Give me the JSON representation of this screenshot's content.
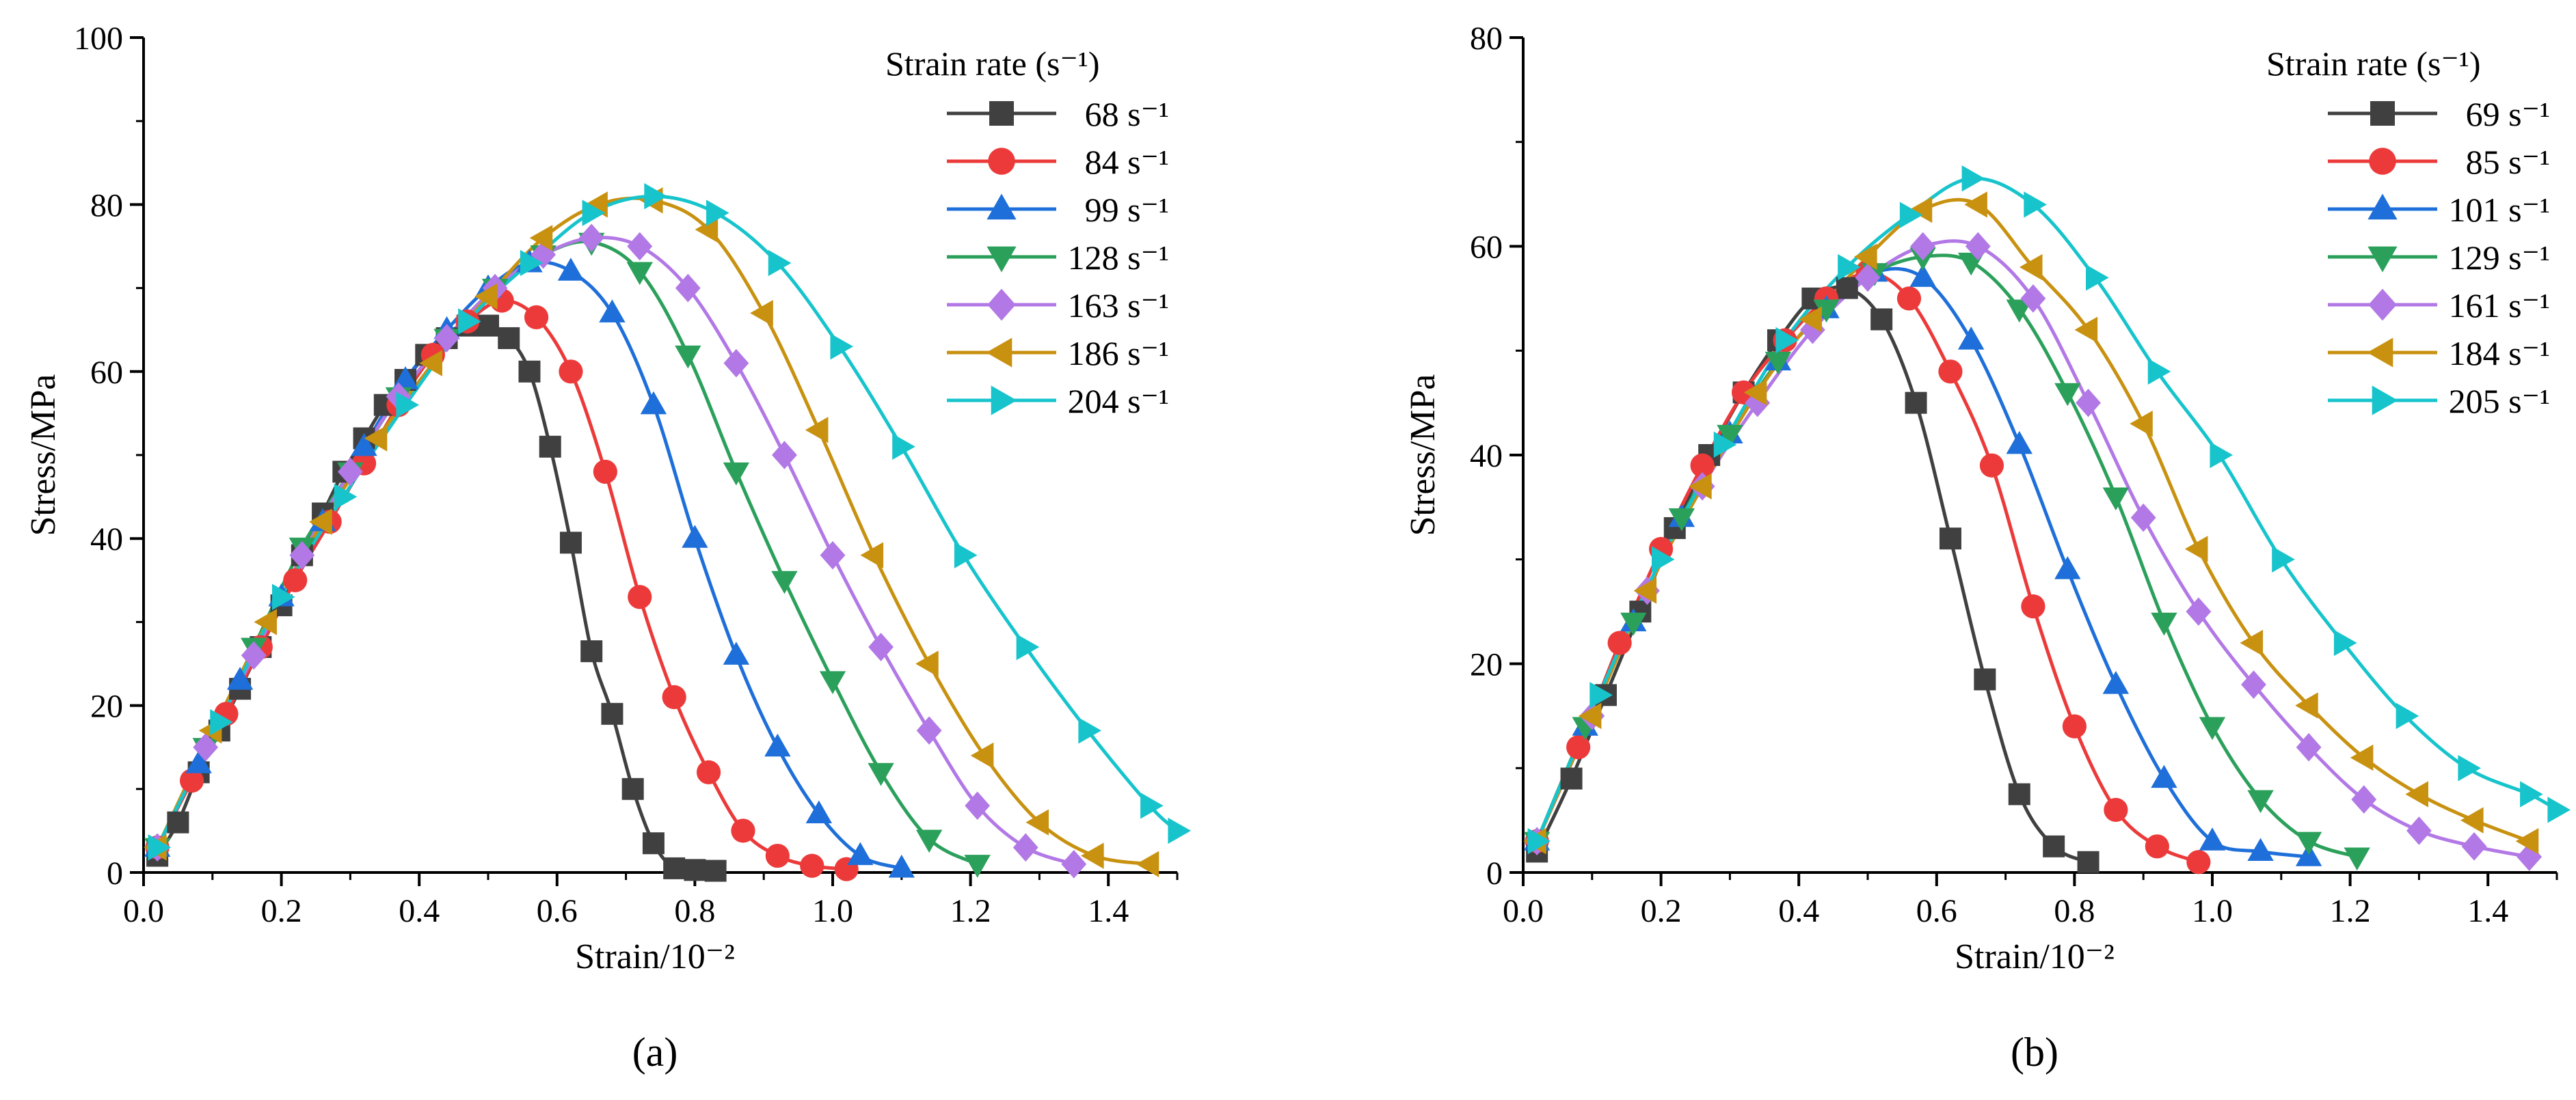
{
  "chart_data": [
    {
      "panel_label": "(a)",
      "type": "line",
      "xlabel": "Strain/10⁻²",
      "ylabel": "Stress/MPa",
      "xlim": [
        0,
        1.5
      ],
      "ylim": [
        0,
        100
      ],
      "xticks": [
        "0.0",
        "0.2",
        "0.4",
        "0.6",
        "0.8",
        "1.0",
        "1.2",
        "1.4"
      ],
      "yticks": [
        "0",
        "20",
        "40",
        "60",
        "80",
        "100"
      ],
      "legend_title": "Strain rate (s⁻¹)",
      "legend_position": "top-right",
      "series": [
        {
          "name": "68 s⁻¹",
          "color": "#404040",
          "marker": "square",
          "x": [
            0.02,
            0.05,
            0.08,
            0.11,
            0.14,
            0.17,
            0.2,
            0.23,
            0.26,
            0.29,
            0.32,
            0.35,
            0.38,
            0.41,
            0.44,
            0.47,
            0.5,
            0.53,
            0.56,
            0.59,
            0.62,
            0.65,
            0.68,
            0.71,
            0.74,
            0.77,
            0.8,
            0.83
          ],
          "y": [
            2,
            6,
            12,
            17,
            22,
            27,
            32,
            38,
            43,
            48,
            52,
            56,
            59,
            62,
            64,
            65.5,
            65.5,
            64,
            60,
            51,
            39.5,
            26.5,
            19,
            10,
            3.5,
            0.5,
            0.3,
            0.2
          ]
        },
        {
          "name": "84 s⁻¹",
          "color": "#ec3a3a",
          "marker": "circle",
          "x": [
            0.02,
            0.07,
            0.12,
            0.17,
            0.22,
            0.27,
            0.32,
            0.37,
            0.42,
            0.47,
            0.52,
            0.57,
            0.62,
            0.67,
            0.72,
            0.77,
            0.82,
            0.87,
            0.92,
            0.97,
            1.02
          ],
          "y": [
            3,
            11,
            19,
            27,
            35,
            42,
            49,
            56,
            62,
            66,
            68.5,
            66.5,
            60,
            48,
            33,
            21,
            12,
            5,
            2,
            0.8,
            0.4
          ]
        },
        {
          "name": "99 s⁻¹",
          "color": "#1e6fd9",
          "marker": "triangle-up",
          "x": [
            0.02,
            0.08,
            0.14,
            0.2,
            0.26,
            0.32,
            0.38,
            0.44,
            0.5,
            0.56,
            0.62,
            0.68,
            0.74,
            0.8,
            0.86,
            0.92,
            0.98,
            1.04,
            1.1
          ],
          "y": [
            3,
            13,
            23,
            33,
            42,
            51,
            59,
            65,
            70,
            73,
            72,
            67,
            56,
            40,
            26,
            15,
            7,
            2,
            0.5
          ]
        },
        {
          "name": "128 s⁻¹",
          "color": "#2ba05b",
          "marker": "triangle-down",
          "x": [
            0.02,
            0.09,
            0.16,
            0.23,
            0.3,
            0.37,
            0.44,
            0.51,
            0.58,
            0.65,
            0.72,
            0.79,
            0.86,
            0.93,
            1.0,
            1.07,
            1.14,
            1.21
          ],
          "y": [
            3,
            15,
            27,
            39,
            48,
            57,
            64,
            70,
            74,
            75.5,
            72,
            62,
            48,
            35,
            23,
            12,
            4,
            1
          ]
        },
        {
          "name": "163 s⁻¹",
          "color": "#b278e6",
          "marker": "diamond",
          "x": [
            0.02,
            0.09,
            0.16,
            0.23,
            0.3,
            0.37,
            0.44,
            0.51,
            0.58,
            0.65,
            0.72,
            0.79,
            0.86,
            0.93,
            1.0,
            1.07,
            1.14,
            1.21,
            1.28,
            1.35
          ],
          "y": [
            3,
            15,
            26,
            38,
            48,
            57,
            64,
            70,
            74,
            76,
            75,
            70,
            61,
            50,
            38,
            27,
            17,
            8,
            3,
            1
          ]
        },
        {
          "name": "186 s⁻¹",
          "color": "#c89110",
          "marker": "triangle-left",
          "x": [
            0.02,
            0.1,
            0.18,
            0.26,
            0.34,
            0.42,
            0.5,
            0.58,
            0.66,
            0.74,
            0.82,
            0.9,
            0.98,
            1.06,
            1.14,
            1.22,
            1.3,
            1.38,
            1.46
          ],
          "y": [
            3,
            17,
            30,
            42,
            52,
            61,
            69,
            76,
            80,
            80.5,
            77,
            67,
            53,
            38,
            25,
            14,
            6,
            2,
            1
          ]
        },
        {
          "name": "204 s⁻¹",
          "color": "#17c4cc",
          "marker": "triangle-right",
          "x": [
            0.02,
            0.11,
            0.2,
            0.29,
            0.38,
            0.47,
            0.56,
            0.65,
            0.74,
            0.83,
            0.92,
            1.01,
            1.1,
            1.19,
            1.28,
            1.37,
            1.46,
            1.5
          ],
          "y": [
            3,
            18,
            33,
            45,
            56,
            66,
            73,
            79,
            81,
            79,
            73,
            63,
            51,
            38,
            27,
            17,
            8,
            5
          ]
        }
      ]
    },
    {
      "panel_label": "(b)",
      "type": "line",
      "xlabel": "Strain/10⁻²",
      "ylabel": "Stress/MPa",
      "xlim": [
        0,
        1.5
      ],
      "ylim": [
        0,
        80
      ],
      "xticks": [
        "0.0",
        "0.2",
        "0.4",
        "0.6",
        "0.8",
        "1.0",
        "1.2",
        "1.4"
      ],
      "yticks": [
        "0",
        "20",
        "40",
        "60",
        "80"
      ],
      "legend_title": "Strain rate (s⁻¹)",
      "legend_position": "top-right",
      "series": [
        {
          "name": "69 s⁻¹",
          "color": "#404040",
          "marker": "square",
          "x": [
            0.02,
            0.07,
            0.12,
            0.17,
            0.22,
            0.27,
            0.32,
            0.37,
            0.42,
            0.47,
            0.52,
            0.57,
            0.62,
            0.67,
            0.72,
            0.77,
            0.82
          ],
          "y": [
            2,
            9,
            17,
            25,
            33,
            40,
            46,
            51,
            55,
            56,
            53,
            45,
            32,
            18.5,
            7.5,
            2.5,
            1
          ]
        },
        {
          "name": "85 s⁻¹",
          "color": "#ec3a3a",
          "marker": "circle",
          "x": [
            0.02,
            0.08,
            0.14,
            0.2,
            0.26,
            0.32,
            0.38,
            0.44,
            0.5,
            0.56,
            0.62,
            0.68,
            0.74,
            0.8,
            0.86,
            0.92,
            0.98
          ],
          "y": [
            3,
            12,
            22,
            31,
            39,
            46,
            51,
            55,
            57.5,
            55,
            48,
            39,
            25.5,
            14,
            6,
            2.5,
            1
          ]
        },
        {
          "name": "101 s⁻¹",
          "color": "#1e6fd9",
          "marker": "triangle-up",
          "x": [
            0.02,
            0.09,
            0.16,
            0.23,
            0.3,
            0.37,
            0.44,
            0.51,
            0.58,
            0.65,
            0.72,
            0.79,
            0.86,
            0.93,
            1.0,
            1.07,
            1.14
          ],
          "y": [
            3,
            14,
            24,
            34,
            42,
            49,
            54,
            57.5,
            57,
            51,
            41,
            29,
            18,
            9,
            3,
            2,
            1.5
          ]
        },
        {
          "name": "129 s⁻¹",
          "color": "#2ba05b",
          "marker": "triangle-down",
          "x": [
            0.02,
            0.09,
            0.16,
            0.23,
            0.3,
            0.37,
            0.44,
            0.51,
            0.58,
            0.65,
            0.72,
            0.79,
            0.86,
            0.93,
            1.0,
            1.07,
            1.14,
            1.21
          ],
          "y": [
            3,
            14,
            24,
            34,
            42,
            49,
            54,
            57.5,
            59,
            58.5,
            54,
            46,
            36,
            24,
            14,
            7,
            3,
            1.5
          ]
        },
        {
          "name": "161 s⁻¹",
          "color": "#b278e6",
          "marker": "diamond",
          "x": [
            0.02,
            0.1,
            0.18,
            0.26,
            0.34,
            0.42,
            0.5,
            0.58,
            0.66,
            0.74,
            0.82,
            0.9,
            0.98,
            1.06,
            1.14,
            1.22,
            1.3,
            1.38,
            1.46
          ],
          "y": [
            3,
            15,
            27,
            37,
            45,
            52,
            57,
            60,
            60,
            55,
            45,
            34,
            25,
            18,
            12,
            7,
            4,
            2.5,
            1.5
          ]
        },
        {
          "name": "184 s⁻¹",
          "color": "#c89110",
          "marker": "triangle-left",
          "x": [
            0.02,
            0.1,
            0.18,
            0.26,
            0.34,
            0.42,
            0.5,
            0.58,
            0.66,
            0.74,
            0.82,
            0.9,
            0.98,
            1.06,
            1.14,
            1.22,
            1.3,
            1.38,
            1.46
          ],
          "y": [
            3,
            15,
            27,
            37,
            46,
            53,
            59,
            63.5,
            64,
            58,
            52,
            43,
            31,
            22,
            16,
            11,
            7.5,
            5,
            3
          ]
        },
        {
          "name": "205 s⁻¹",
          "color": "#17c4cc",
          "marker": "triangle-right",
          "x": [
            0.02,
            0.11,
            0.2,
            0.29,
            0.38,
            0.47,
            0.56,
            0.65,
            0.74,
            0.83,
            0.92,
            1.01,
            1.1,
            1.19,
            1.28,
            1.37,
            1.46,
            1.5
          ],
          "y": [
            3,
            17,
            30,
            41,
            51,
            58,
            63,
            66.5,
            64,
            57,
            48,
            40,
            30,
            22,
            15,
            10,
            7.5,
            6
          ]
        }
      ]
    }
  ]
}
